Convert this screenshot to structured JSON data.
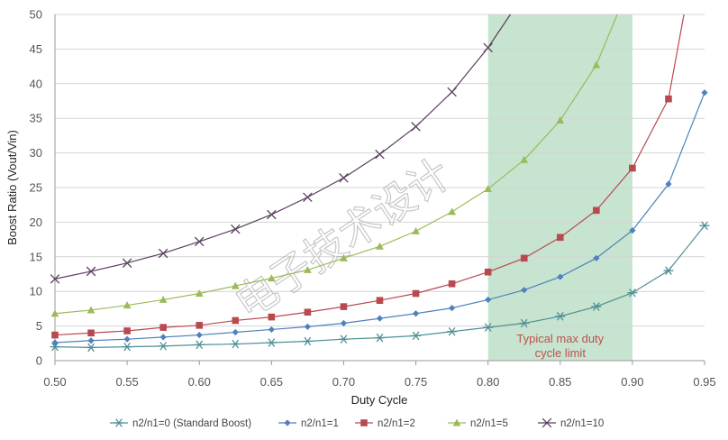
{
  "chart_data": {
    "type": "line",
    "title": "",
    "xlabel": "Duty Cycle",
    "ylabel": "Boost Ratio (Vout/Vin)",
    "xlim": [
      0.5,
      0.95
    ],
    "ylim": [
      0,
      50
    ],
    "xticks": [
      "0.50",
      "0.55",
      "0.60",
      "0.65",
      "0.70",
      "0.75",
      "0.80",
      "0.85",
      "0.90",
      "0.95"
    ],
    "yticks": [
      "0",
      "5",
      "10",
      "15",
      "20",
      "25",
      "30",
      "35",
      "40",
      "45",
      "50"
    ],
    "grid": "horizontal",
    "legend": "bottom",
    "annotation": {
      "text_line1": "Typical max duty",
      "text_line2": "cycle limit",
      "x_range": [
        0.8,
        0.9
      ],
      "color": "#c0504d"
    },
    "watermark": "电子技术设计",
    "series": [
      {
        "name": "n2/n1=0 (Standard Boost)",
        "marker": "asterisk",
        "color": "#4f8f95",
        "points": [
          [
            0.5,
            2.0
          ],
          [
            0.525,
            1.9
          ],
          [
            0.55,
            2.0
          ],
          [
            0.575,
            2.1
          ],
          [
            0.6,
            2.3
          ],
          [
            0.625,
            2.4
          ],
          [
            0.65,
            2.6
          ],
          [
            0.675,
            2.8
          ],
          [
            0.7,
            3.1
          ],
          [
            0.725,
            3.3
          ],
          [
            0.75,
            3.6
          ],
          [
            0.775,
            4.2
          ],
          [
            0.8,
            4.8
          ],
          [
            0.825,
            5.4
          ],
          [
            0.85,
            6.4
          ],
          [
            0.875,
            7.8
          ],
          [
            0.9,
            9.8
          ],
          [
            0.925,
            13.0
          ],
          [
            0.95,
            19.5
          ]
        ]
      },
      {
        "name": "n2/n1=1",
        "marker": "diamond",
        "color": "#4f81bd",
        "points": [
          [
            0.5,
            2.6
          ],
          [
            0.525,
            2.9
          ],
          [
            0.55,
            3.1
          ],
          [
            0.575,
            3.4
          ],
          [
            0.6,
            3.7
          ],
          [
            0.625,
            4.1
          ],
          [
            0.65,
            4.5
          ],
          [
            0.675,
            4.9
          ],
          [
            0.7,
            5.4
          ],
          [
            0.725,
            6.1
          ],
          [
            0.75,
            6.8
          ],
          [
            0.775,
            7.6
          ],
          [
            0.8,
            8.8
          ],
          [
            0.825,
            10.2
          ],
          [
            0.85,
            12.1
          ],
          [
            0.875,
            14.8
          ],
          [
            0.9,
            18.8
          ],
          [
            0.925,
            25.5
          ],
          [
            0.95,
            38.7
          ]
        ]
      },
      {
        "name": "n2/n1=2",
        "marker": "square",
        "color": "#b84a4f",
        "points": [
          [
            0.5,
            3.7
          ],
          [
            0.525,
            4.0
          ],
          [
            0.55,
            4.3
          ],
          [
            0.575,
            4.8
          ],
          [
            0.6,
            5.1
          ],
          [
            0.625,
            5.8
          ],
          [
            0.65,
            6.3
          ],
          [
            0.675,
            7.0
          ],
          [
            0.7,
            7.8
          ],
          [
            0.725,
            8.7
          ],
          [
            0.75,
            9.7
          ],
          [
            0.775,
            11.1
          ],
          [
            0.8,
            12.8
          ],
          [
            0.825,
            14.8
          ],
          [
            0.85,
            17.8
          ],
          [
            0.875,
            21.7
          ],
          [
            0.9,
            27.8
          ],
          [
            0.925,
            37.8
          ],
          [
            0.9357,
            50.0
          ]
        ]
      },
      {
        "name": "n2/n1=5",
        "marker": "triangle",
        "color": "#9bbb59",
        "points": [
          [
            0.5,
            6.8
          ],
          [
            0.525,
            7.3
          ],
          [
            0.55,
            8.0
          ],
          [
            0.575,
            8.8
          ],
          [
            0.6,
            9.7
          ],
          [
            0.625,
            10.8
          ],
          [
            0.65,
            11.9
          ],
          [
            0.675,
            13.1
          ],
          [
            0.7,
            14.8
          ],
          [
            0.725,
            16.5
          ],
          [
            0.75,
            18.7
          ],
          [
            0.775,
            21.5
          ],
          [
            0.8,
            24.8
          ],
          [
            0.825,
            29.0
          ],
          [
            0.85,
            34.7
          ],
          [
            0.875,
            42.7
          ],
          [
            0.8895,
            50.0
          ]
        ]
      },
      {
        "name": "n2/n1=10",
        "marker": "x",
        "color": "#5a3f5f",
        "points": [
          [
            0.5,
            11.8
          ],
          [
            0.525,
            12.9
          ],
          [
            0.55,
            14.1
          ],
          [
            0.575,
            15.5
          ],
          [
            0.6,
            17.2
          ],
          [
            0.625,
            19.0
          ],
          [
            0.65,
            21.1
          ],
          [
            0.675,
            23.6
          ],
          [
            0.7,
            26.4
          ],
          [
            0.725,
            29.8
          ],
          [
            0.75,
            33.8
          ],
          [
            0.775,
            38.8
          ],
          [
            0.8,
            45.2
          ],
          [
            0.8155,
            50.0
          ]
        ]
      }
    ]
  }
}
